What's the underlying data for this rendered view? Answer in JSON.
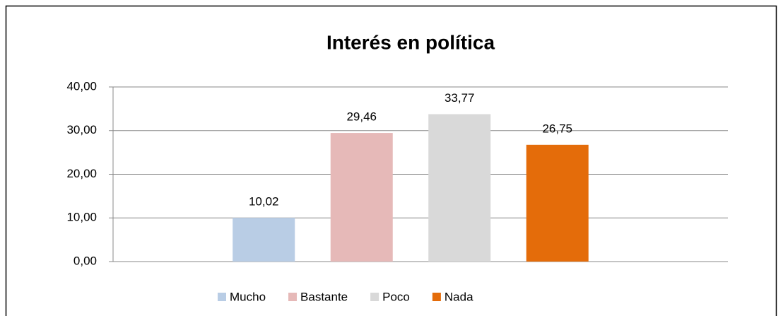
{
  "chart_data": {
    "type": "bar",
    "title": "Interés en política",
    "categories": [
      null
    ],
    "series": [
      {
        "name": "Mucho",
        "color": "#b9cde5",
        "values": [
          10.02
        ],
        "value_labels": [
          "10,02"
        ]
      },
      {
        "name": "Bastante",
        "color": "#e6b9b8",
        "values": [
          29.46
        ],
        "value_labels": [
          "29,46"
        ]
      },
      {
        "name": "Poco",
        "color": "#d9d9d9",
        "values": [
          33.77
        ],
        "value_labels": [
          "33,77"
        ]
      },
      {
        "name": "Nada",
        "color": "#e46c0a",
        "values": [
          26.75
        ],
        "value_labels": [
          "26,75"
        ]
      }
    ],
    "ylim": [
      0,
      40
    ],
    "yticks": [
      {
        "value": 0,
        "label": "0,00"
      },
      {
        "value": 10,
        "label": "10,00"
      },
      {
        "value": 20,
        "label": "20,00"
      },
      {
        "value": 30,
        "label": "30,00"
      },
      {
        "value": 40,
        "label": "40,00"
      }
    ],
    "grid": true,
    "legend": "bottom"
  }
}
